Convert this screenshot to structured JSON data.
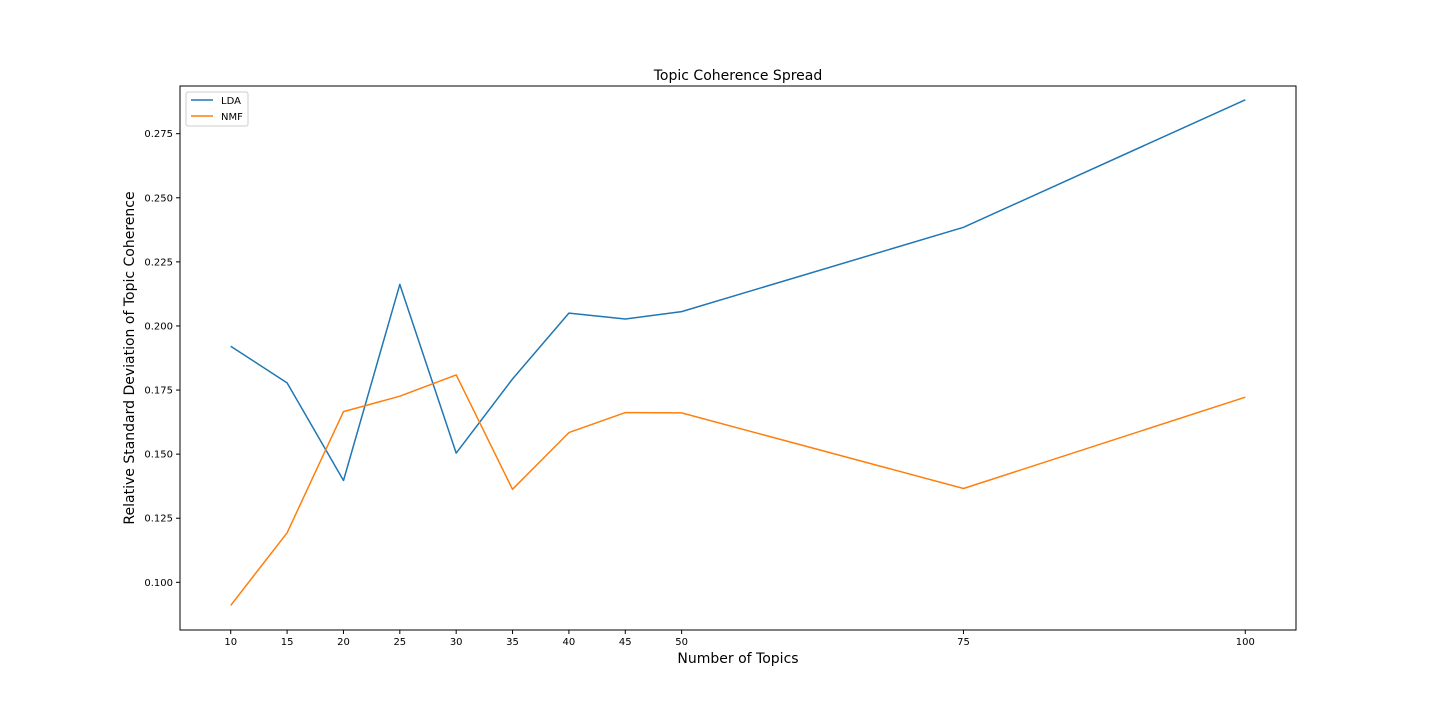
{
  "chart_data": {
    "type": "line",
    "title": "Topic Coherence Spread",
    "xlabel": "Number of Topics",
    "ylabel": "Relative Standard Deviation of Topic Coherence",
    "x": [
      10,
      15,
      20,
      25,
      30,
      35,
      40,
      45,
      50,
      75,
      100
    ],
    "xticks": [
      "10",
      "15",
      "20",
      "25",
      "30",
      "35",
      "40",
      "45",
      "50",
      "75",
      "100"
    ],
    "yticks": [
      "0.100",
      "0.125",
      "0.150",
      "0.175",
      "0.200",
      "0.225",
      "0.250",
      "0.275"
    ],
    "xlim": [
      5.5,
      104.5
    ],
    "ylim": [
      0.0814,
      0.2936
    ],
    "grid": false,
    "legend_position": "top-left",
    "series": [
      {
        "name": "LDA",
        "color": "#1f77b4",
        "values": [
          0.1921,
          0.1778,
          0.1397,
          0.2162,
          0.1504,
          0.1793,
          0.205,
          0.2027,
          0.2056,
          0.2385,
          0.2882
        ]
      },
      {
        "name": "NMF",
        "color": "#ff7f0e",
        "values": [
          0.091,
          0.1193,
          0.1666,
          0.1726,
          0.1809,
          0.1363,
          0.1584,
          0.1662,
          0.1661,
          0.1366,
          0.1722
        ]
      }
    ]
  }
}
